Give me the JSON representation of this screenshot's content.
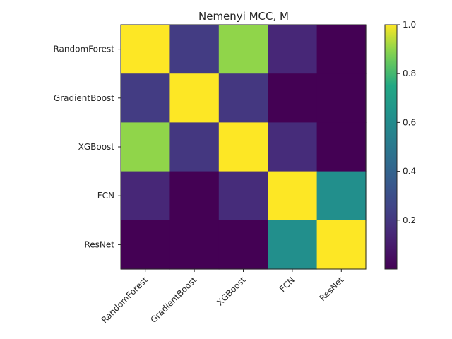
{
  "chart_data": {
    "type": "heatmap",
    "title": "Nemenyi MCC, M",
    "row_labels": [
      "RandomForest",
      "GradientBoost",
      "XGBoost",
      "FCN",
      "ResNet"
    ],
    "col_labels": [
      "RandomForest",
      "GradientBoost",
      "XGBoost",
      "FCN",
      "ResNet"
    ],
    "values": [
      [
        1.0,
        0.22,
        0.9,
        0.14,
        0.0
      ],
      [
        0.22,
        1.0,
        0.2,
        0.0,
        0.0
      ],
      [
        0.9,
        0.2,
        1.0,
        0.16,
        0.0
      ],
      [
        0.14,
        0.0,
        0.16,
        1.0,
        0.62
      ],
      [
        0.0,
        0.0,
        0.0,
        0.62,
        1.0
      ]
    ],
    "colormap": "viridis",
    "colorbar": {
      "vmin": 0.0,
      "vmax": 1.0,
      "ticks": [
        0.2,
        0.4,
        0.6,
        0.8,
        1.0
      ],
      "tick_labels": [
        "0.2",
        "0.4",
        "0.6",
        "0.8",
        "1.0"
      ]
    },
    "grid": false
  }
}
